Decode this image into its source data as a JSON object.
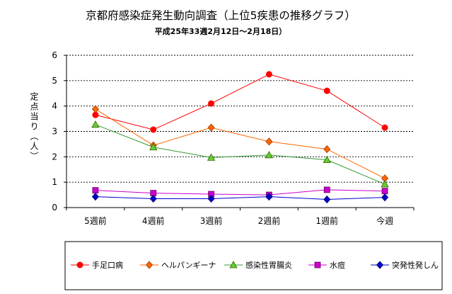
{
  "chart_data": {
    "type": "line",
    "title": "京都府感染症発生動向調査（上位5疾患の推移グラフ）",
    "subtitle": "平成25年33週2月12日～2月18日）",
    "ylabel": "定点当り（人）",
    "xlabel": "",
    "ylim": [
      0,
      6
    ],
    "yticks": [
      0,
      1,
      2,
      3,
      4,
      5,
      6
    ],
    "categories": [
      "5週前",
      "4週前",
      "3週前",
      "2週前",
      "1週前",
      "今週"
    ],
    "grid": "horizontal-dashed",
    "legend_position": "bottom",
    "series": [
      {
        "name": "手足口病",
        "color": "#ff0000",
        "marker": "circle",
        "values": [
          3.65,
          3.07,
          4.1,
          5.25,
          4.6,
          3.15
        ]
      },
      {
        "name": "ヘルパンギーナ",
        "color": "#ff6600",
        "marker": "diamond",
        "values": [
          3.88,
          2.45,
          3.15,
          2.6,
          2.3,
          1.15
        ]
      },
      {
        "name": "感染性胃腸炎",
        "color": "#339933",
        "marker": "triangle",
        "values": [
          3.27,
          2.38,
          1.97,
          2.07,
          1.88,
          0.92
        ]
      },
      {
        "name": "水痘",
        "color": "#cc00cc",
        "marker": "square",
        "values": [
          0.68,
          0.57,
          0.53,
          0.5,
          0.7,
          0.65
        ]
      },
      {
        "name": "突発性発しん",
        "color": "#0000cc",
        "marker": "diamond",
        "values": [
          0.43,
          0.35,
          0.35,
          0.43,
          0.32,
          0.4
        ]
      }
    ]
  }
}
